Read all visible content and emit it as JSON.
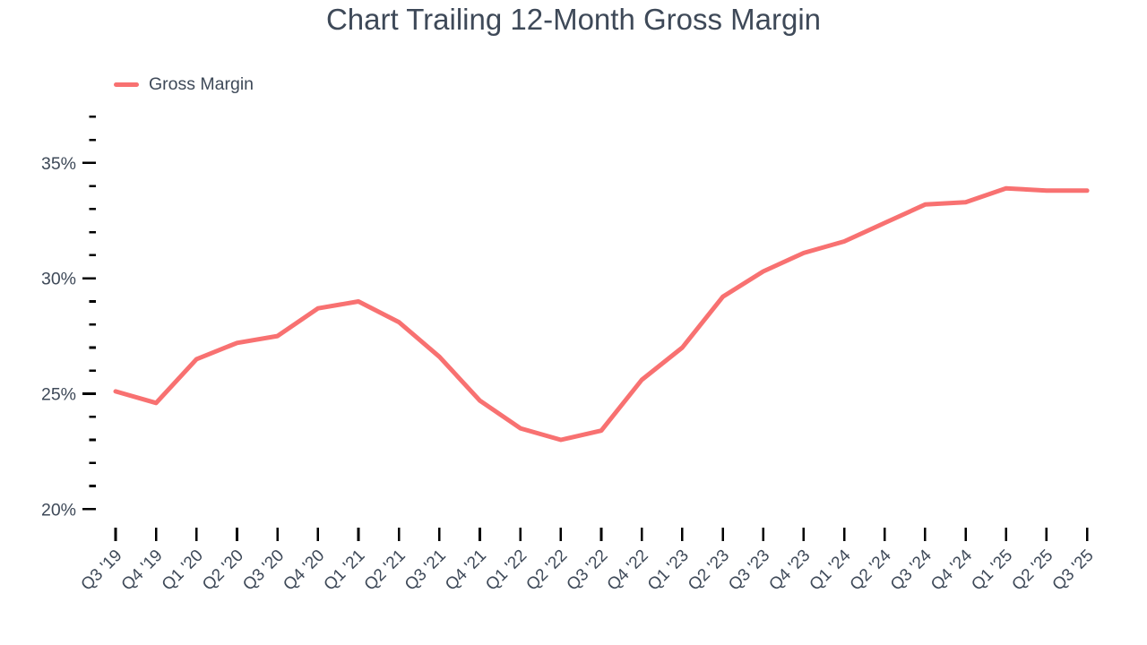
{
  "title": {
    "text": "Chart Trailing 12-Month Gross Margin"
  },
  "legend": {
    "items": [
      {
        "label": "Gross Margin",
        "color": "#f87171"
      }
    ]
  },
  "colors": {
    "line": "#f87171",
    "text": "#3e4958",
    "tick": "#000000",
    "background": "#ffffff"
  },
  "chart_data": {
    "type": "line",
    "title": "Chart Trailing 12-Month Gross Margin",
    "xlabel": "",
    "ylabel": "",
    "unit": "%",
    "ylim": [
      20,
      37
    ],
    "grid": false,
    "legend_position": "top-left",
    "categories": [
      "Q3 '19",
      "Q4 '19",
      "Q1 '20",
      "Q2 '20",
      "Q3 '20",
      "Q4 '20",
      "Q1 '21",
      "Q2 '21",
      "Q3 '21",
      "Q4 '21",
      "Q1 '22",
      "Q2 '22",
      "Q3 '22",
      "Q4 '22",
      "Q1 '23",
      "Q2 '23",
      "Q3 '23",
      "Q4 '23",
      "Q1 '24",
      "Q2 '24",
      "Q3 '24",
      "Q4 '24",
      "Q1 '25",
      "Q2 '25",
      "Q3 '25"
    ],
    "series": [
      {
        "name": "Gross Margin",
        "color": "#f87171",
        "values": [
          25.1,
          24.6,
          26.5,
          27.2,
          27.5,
          28.7,
          29.0,
          28.1,
          26.6,
          24.7,
          23.5,
          23.0,
          23.4,
          25.6,
          27.0,
          29.2,
          30.3,
          31.1,
          31.6,
          32.4,
          33.2,
          33.3,
          33.9,
          33.8,
          33.8
        ]
      }
    ],
    "y_ticks": [
      {
        "value": 37,
        "label": ""
      },
      {
        "value": 36,
        "label": ""
      },
      {
        "value": 35,
        "label": "35%"
      },
      {
        "value": 34,
        "label": ""
      },
      {
        "value": 33,
        "label": ""
      },
      {
        "value": 32,
        "label": ""
      },
      {
        "value": 31,
        "label": ""
      },
      {
        "value": 30,
        "label": "30%"
      },
      {
        "value": 29,
        "label": ""
      },
      {
        "value": 28,
        "label": ""
      },
      {
        "value": 27,
        "label": ""
      },
      {
        "value": 26,
        "label": ""
      },
      {
        "value": 25,
        "label": "25%"
      },
      {
        "value": 24,
        "label": ""
      },
      {
        "value": 23,
        "label": ""
      },
      {
        "value": 22,
        "label": ""
      },
      {
        "value": 21,
        "label": ""
      },
      {
        "value": 20,
        "label": "20%"
      }
    ]
  }
}
